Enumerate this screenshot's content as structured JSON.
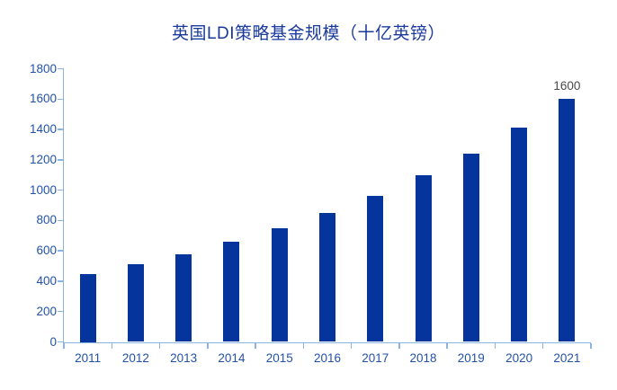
{
  "chart_data": {
    "type": "bar",
    "title": "英国LDI策略基金规模（十亿英镑）",
    "categories": [
      "2011",
      "2012",
      "2013",
      "2014",
      "2015",
      "2016",
      "2017",
      "2018",
      "2019",
      "2020",
      "2021"
    ],
    "values": [
      450,
      510,
      580,
      660,
      750,
      850,
      960,
      1100,
      1240,
      1410,
      1600
    ],
    "annotations": [
      {
        "category": "2021",
        "value": 1600,
        "text": "1600"
      }
    ],
    "ylim": [
      0,
      1800
    ],
    "yticks": [
      0,
      200,
      400,
      600,
      800,
      1000,
      1200,
      1400,
      1600,
      1800
    ],
    "xlabel": "",
    "ylabel": "",
    "grid": false,
    "legend": null,
    "colors": {
      "bar": "#04349C",
      "title": "#1A3A9C",
      "axis_line": "#8DB3E2",
      "tick_label": "#2252A8",
      "annotation": "#4A4A4A",
      "background": "#FFFFFF"
    }
  }
}
